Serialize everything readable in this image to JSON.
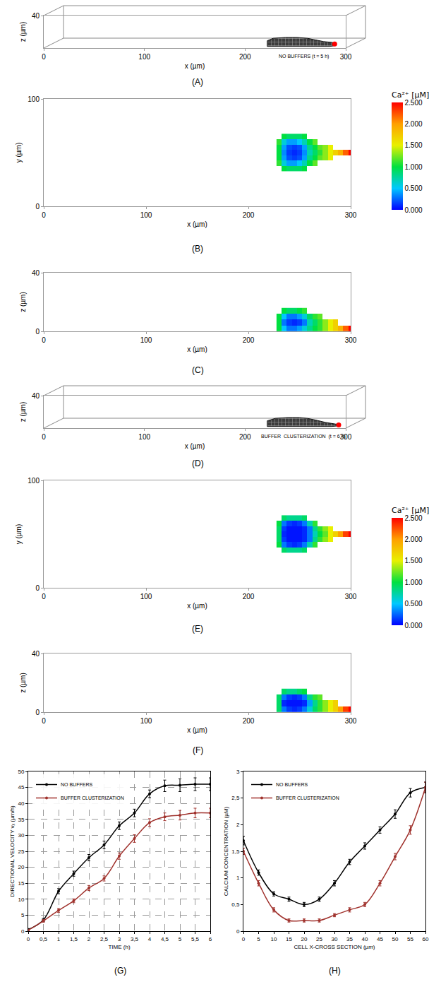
{
  "chart_data": [
    {
      "type": "mesh",
      "label": "(A)",
      "annotation": "NO BUFFERS (t = 5 h)",
      "x_label": "x (µm)",
      "y_label": "z (µm)",
      "xlim": [
        0,
        300
      ],
      "ylim": [
        0,
        40
      ],
      "xticks": [
        0,
        100,
        200,
        300
      ],
      "yticks": [
        40
      ],
      "color": "#3c3c3c",
      "outline": {
        "x": [
          222,
          222,
          228,
          240,
          252,
          262,
          270,
          278,
          286,
          290,
          290,
          284,
          270,
          250,
          222
        ],
        "y": [
          2,
          9,
          12,
          13,
          13,
          12,
          10,
          8,
          7,
          6,
          3,
          2,
          2,
          2,
          2
        ]
      },
      "point": {
        "x": 289,
        "y": 5,
        "color": "#ff0000"
      }
    },
    {
      "type": "heatmap",
      "label": "(B)",
      "x_label": "x (µm)",
      "y_label": "y (µm)",
      "xlim": [
        0,
        300
      ],
      "ylim": [
        0,
        100
      ],
      "xticks": [
        0,
        100,
        200,
        300
      ],
      "yticks": [
        0,
        100
      ],
      "x": [
        230,
        235,
        240,
        245,
        250,
        255,
        260,
        265,
        270,
        275,
        280,
        285,
        290,
        295,
        300
      ],
      "y": [
        35,
        40,
        45,
        50,
        55,
        60,
        65
      ],
      "cells": [
        [
          null,
          1.0,
          0.9,
          0.9,
          0.9,
          1.0,
          null,
          null,
          null,
          null,
          null,
          null,
          null,
          null,
          null
        ],
        [
          1.1,
          0.6,
          0.4,
          0.4,
          0.5,
          0.7,
          1.0,
          1.2,
          null,
          null,
          null,
          null,
          null,
          null,
          null
        ],
        [
          1.0,
          0.4,
          0.2,
          0.15,
          0.2,
          0.4,
          0.8,
          1.0,
          1.2,
          1.3,
          1.5,
          null,
          null,
          null,
          null
        ],
        [
          1.0,
          0.35,
          0.15,
          0.1,
          0.15,
          0.35,
          0.7,
          0.9,
          1.1,
          1.3,
          1.5,
          1.7,
          1.9,
          2.2,
          2.5
        ],
        [
          1.0,
          0.4,
          0.2,
          0.15,
          0.2,
          0.4,
          0.8,
          1.0,
          1.2,
          1.3,
          1.5,
          null,
          null,
          null,
          null
        ],
        [
          1.1,
          0.6,
          0.4,
          0.4,
          0.5,
          0.7,
          1.0,
          1.2,
          null,
          null,
          null,
          null,
          null,
          null,
          null
        ],
        [
          null,
          1.0,
          0.9,
          0.9,
          0.9,
          1.0,
          null,
          null,
          null,
          null,
          null,
          null,
          null,
          null,
          null
        ]
      ],
      "colorbar": {
        "title": "Ca²⁺ [µM]",
        "range": [
          0,
          2.5
        ],
        "ticks": [
          {
            "value": 0,
            "label": "0.000"
          },
          {
            "value": 0.5,
            "label": "0.500"
          },
          {
            "value": 1,
            "label": "1.000"
          },
          {
            "value": 1.5,
            "label": "1.500"
          },
          {
            "value": 2,
            "label": "2.000"
          },
          {
            "value": 2.5,
            "label": "2.500"
          }
        ]
      }
    },
    {
      "type": "heatmap",
      "label": "(C)",
      "x_label": "x (µm)",
      "y_label": "z (µm)",
      "xlim": [
        0,
        300
      ],
      "ylim": [
        0,
        40
      ],
      "xticks": [
        0,
        100,
        200,
        300
      ],
      "yticks": [
        0,
        40
      ],
      "x": [
        230,
        235,
        240,
        245,
        250,
        255,
        260,
        265,
        270,
        275,
        280,
        285,
        290,
        295,
        300
      ],
      "y": [
        2,
        6,
        10,
        14
      ],
      "cells": [
        [
          1.0,
          0.5,
          0.3,
          0.3,
          0.4,
          0.6,
          0.8,
          1.0,
          1.1,
          1.3,
          1.5,
          1.7,
          1.9,
          2.2,
          2.5
        ],
        [
          1.0,
          0.3,
          0.15,
          0.1,
          0.15,
          0.3,
          0.7,
          0.9,
          1.1,
          1.3,
          1.5,
          1.7,
          null,
          null,
          null
        ],
        [
          1.0,
          0.5,
          0.3,
          0.3,
          0.4,
          0.6,
          0.9,
          1.1,
          1.2,
          null,
          null,
          null,
          null,
          null,
          null
        ],
        [
          null,
          1.0,
          0.9,
          0.9,
          1.0,
          1.1,
          null,
          null,
          null,
          null,
          null,
          null,
          null,
          null,
          null
        ]
      ]
    },
    {
      "type": "mesh",
      "label": "(D)",
      "annotation": "BUFFER  CLUSTERIZATION  (t = 6 h)",
      "x_label": "x (µm)",
      "y_label": "z (µm)",
      "xlim": [
        0,
        300
      ],
      "ylim": [
        0,
        40
      ],
      "xticks": [
        0,
        100,
        200,
        300
      ],
      "yticks": [
        40
      ],
      "color": "#3c3c3c",
      "outline": {
        "x": [
          222,
          222,
          230,
          242,
          254,
          262,
          270,
          280,
          290,
          294,
          294,
          286,
          270,
          250,
          222
        ],
        "y": [
          2,
          9,
          12,
          13,
          13,
          12,
          10,
          7,
          5,
          5,
          3,
          2,
          2,
          2,
          2
        ]
      },
      "point": {
        "x": 293,
        "y": 4,
        "color": "#ff0000"
      }
    },
    {
      "type": "heatmap",
      "label": "(E)",
      "x_label": "x (µm)",
      "y_label": "y (µm)",
      "xlim": [
        0,
        300
      ],
      "ylim": [
        0,
        100
      ],
      "xticks": [
        0,
        100,
        200,
        300
      ],
      "yticks": [
        0,
        100
      ],
      "x": [
        230,
        235,
        240,
        245,
        250,
        255,
        260,
        265,
        270,
        275,
        280,
        285,
        290,
        295,
        300
      ],
      "y": [
        35,
        40,
        45,
        50,
        55,
        60,
        65
      ],
      "cells": [
        [
          null,
          0.9,
          0.8,
          0.8,
          0.8,
          0.9,
          null,
          null,
          null,
          null,
          null,
          null,
          null,
          null,
          null
        ],
        [
          1.0,
          0.3,
          0.15,
          0.1,
          0.15,
          0.3,
          0.7,
          1.1,
          null,
          null,
          null,
          null,
          null,
          null,
          null
        ],
        [
          0.9,
          0.15,
          0.05,
          0.05,
          0.05,
          0.1,
          0.3,
          0.8,
          1.1,
          1.3,
          1.5,
          null,
          null,
          null,
          null
        ],
        [
          0.9,
          0.1,
          0.05,
          0.05,
          0.05,
          0.1,
          0.3,
          0.7,
          1.0,
          1.2,
          1.5,
          1.7,
          2.0,
          2.3,
          2.5
        ],
        [
          0.9,
          0.15,
          0.05,
          0.05,
          0.05,
          0.1,
          0.3,
          0.8,
          1.1,
          1.3,
          1.5,
          null,
          null,
          null,
          null
        ],
        [
          1.0,
          0.3,
          0.15,
          0.1,
          0.15,
          0.3,
          0.7,
          1.1,
          null,
          null,
          null,
          null,
          null,
          null,
          null
        ],
        [
          null,
          0.9,
          0.8,
          0.8,
          0.8,
          0.9,
          null,
          null,
          null,
          null,
          null,
          null,
          null,
          null,
          null
        ]
      ],
      "colorbar": {
        "title": "Ca²⁺ [µM]",
        "range": [
          0,
          2.5
        ],
        "ticks": [
          {
            "value": 0,
            "label": "0.000"
          },
          {
            "value": 0.5,
            "label": "0.500"
          },
          {
            "value": 1,
            "label": "1.000"
          },
          {
            "value": 1.5,
            "label": "1.500"
          },
          {
            "value": 2,
            "label": "2.000"
          },
          {
            "value": 2.5,
            "label": "2.500"
          }
        ]
      }
    },
    {
      "type": "heatmap",
      "label": "(F)",
      "x_label": "x (µm)",
      "y_label": "z (µm)",
      "xlim": [
        0,
        300
      ],
      "ylim": [
        0,
        40
      ],
      "xticks": [
        0,
        100,
        200,
        300
      ],
      "yticks": [
        0,
        40
      ],
      "x": [
        230,
        235,
        240,
        245,
        250,
        255,
        260,
        265,
        270,
        275,
        280,
        285,
        290,
        295,
        300
      ],
      "y": [
        2,
        6,
        10,
        14
      ],
      "cells": [
        [
          0.9,
          0.3,
          0.15,
          0.1,
          0.15,
          0.3,
          0.6,
          0.9,
          1.1,
          1.3,
          1.5,
          1.7,
          2.0,
          2.3,
          2.5
        ],
        [
          0.9,
          0.1,
          0.05,
          0.05,
          0.05,
          0.1,
          0.4,
          0.8,
          1.1,
          1.3,
          1.5,
          1.7,
          null,
          null,
          null
        ],
        [
          0.9,
          0.3,
          0.15,
          0.1,
          0.15,
          0.3,
          0.8,
          1.1,
          1.2,
          null,
          null,
          null,
          null,
          null,
          null
        ],
        [
          null,
          0.9,
          0.8,
          0.8,
          0.9,
          1.0,
          null,
          null,
          null,
          null,
          null,
          null,
          null,
          null,
          null
        ]
      ]
    },
    {
      "type": "line",
      "label": "(G)",
      "x_label": "TIME (h)",
      "y_label": "DIRECTIONAL VELOCITY vₓ (µm/h)",
      "x": [
        0,
        0.5,
        1,
        1.5,
        2,
        2.5,
        3,
        3.5,
        4,
        4.5,
        5,
        5.5,
        6
      ],
      "xlim": [
        0,
        6
      ],
      "ylim": [
        0,
        50
      ],
      "xticks": [
        0,
        {
          "value": 0.5,
          "label": "0,5"
        },
        1,
        {
          "value": 1.5,
          "label": "1,5"
        },
        2,
        {
          "value": 2.5,
          "label": "2,5"
        },
        3,
        {
          "value": 3.5,
          "label": "3,5"
        },
        4,
        {
          "value": 4.5,
          "label": "4,5"
        },
        5,
        {
          "value": 5.5,
          "label": "5,5"
        },
        6
      ],
      "yticks": [
        0,
        5,
        10,
        15,
        20,
        25,
        30,
        35,
        40,
        45,
        50
      ],
      "grid": true,
      "legend": "upper left",
      "series": [
        {
          "name": "NO BUFFERS",
          "color": "#000000",
          "marker": "circle",
          "line_style": "solid",
          "values": [
            0.5,
            3.5,
            12.5,
            18,
            23,
            27,
            33,
            37,
            43,
            45.5,
            45.7,
            46,
            46
          ],
          "errors": [
            0.3,
            0.5,
            0.8,
            0.8,
            1,
            1.2,
            1.2,
            1.2,
            1.2,
            1.8,
            2,
            2,
            2
          ]
        },
        {
          "name": "BUFFER CLUSTERIZATION",
          "color": "#a0322d",
          "marker": "circle",
          "line_style": "solid",
          "values": [
            0.3,
            3.2,
            6.5,
            9.5,
            13.5,
            16.5,
            23.5,
            29,
            34,
            35.8,
            36.3,
            37,
            37
          ],
          "errors": [
            0.2,
            0.4,
            0.6,
            0.6,
            0.8,
            0.8,
            1,
            1.2,
            1.2,
            1.2,
            1.5,
            1.5,
            1.5
          ]
        }
      ]
    },
    {
      "type": "line",
      "label": "(H)",
      "x_label": "CELL X-CROSS SECTION (µm)",
      "y_label": "CALCIUM CONCENTRATION (µM)",
      "x": [
        0,
        5,
        10,
        15,
        20,
        25,
        30,
        35,
        40,
        45,
        50,
        55,
        60
      ],
      "xlim": [
        0,
        60
      ],
      "ylim": [
        0,
        3
      ],
      "xticks": [
        0,
        5,
        10,
        15,
        20,
        25,
        30,
        35,
        40,
        45,
        50,
        55,
        60
      ],
      "yticks": [
        0,
        {
          "value": 0.5,
          "label": "0,5"
        },
        1,
        {
          "value": 1.5,
          "label": "1,5"
        },
        2,
        {
          "value": 2.5,
          "label": "2,5"
        },
        3
      ],
      "grid": false,
      "legend": "upper left",
      "series": [
        {
          "name": "NO BUFFERS",
          "color": "#000000",
          "marker": "circle",
          "line_style": "solid",
          "values": [
            1.7,
            1.1,
            0.7,
            0.6,
            0.5,
            0.6,
            0.9,
            1.3,
            1.6,
            1.9,
            2.2,
            2.6,
            2.7
          ],
          "errors": [
            0.08,
            0.05,
            0.04,
            0.04,
            0.04,
            0.04,
            0.05,
            0.05,
            0.06,
            0.06,
            0.08,
            0.08,
            0.1
          ]
        },
        {
          "name": "BUFFER CLUSTERIZATION",
          "color": "#a0322d",
          "marker": "circle",
          "line_style": "solid",
          "values": [
            1.5,
            0.9,
            0.4,
            0.2,
            0.2,
            0.2,
            0.3,
            0.4,
            0.5,
            0.9,
            1.4,
            1.9,
            2.7
          ],
          "errors": [
            0.06,
            0.05,
            0.04,
            0.03,
            0.03,
            0.03,
            0.03,
            0.04,
            0.04,
            0.05,
            0.06,
            0.08,
            0.1
          ]
        }
      ]
    }
  ]
}
